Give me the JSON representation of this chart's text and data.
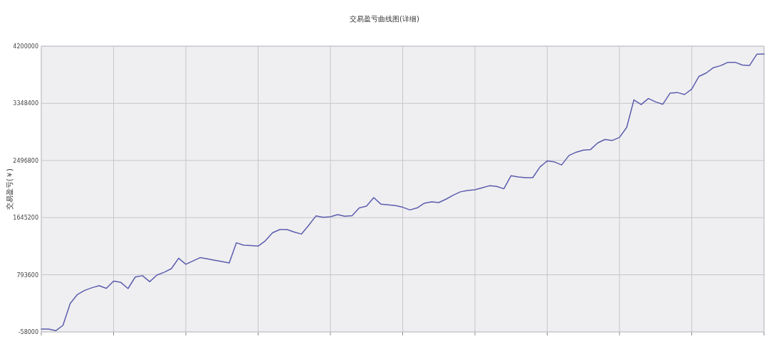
{
  "chart_data": {
    "type": "line",
    "title": "交易盈亏曲线图(详细)",
    "ylabel": "交易盈亏(￥)",
    "categories": [
      null,
      null,
      null,
      null,
      null,
      null,
      null,
      null,
      null,
      null,
      null,
      null,
      null,
      null,
      null,
      null,
      null,
      null,
      null,
      null,
      null,
      null,
      null,
      null,
      null,
      null,
      null,
      null,
      null,
      null,
      null,
      null,
      null,
      null,
      null,
      null,
      null,
      null,
      null,
      null,
      null,
      null,
      null,
      null,
      null,
      null,
      null,
      null,
      null,
      null,
      null,
      null,
      null,
      null,
      null,
      null,
      null,
      null,
      null,
      null,
      null,
      null,
      null,
      null,
      null,
      null,
      null,
      null,
      null,
      null,
      null,
      null,
      null,
      null,
      null,
      null,
      null,
      null,
      null,
      null,
      null,
      null,
      null,
      null,
      null,
      null,
      null,
      null,
      null,
      null,
      null,
      null,
      null,
      null,
      null,
      null,
      null,
      null,
      null,
      null,
      null
    ],
    "series": [
      {
        "color": "#5c5cae",
        "values": [
          -16000,
          -16000,
          -40000,
          40000,
          366000,
          500000,
          560000,
          600000,
          630000,
          590000,
          700000,
          680000,
          588000,
          760000,
          780000,
          690000,
          790000,
          830000,
          885000,
          1040000,
          950000,
          1000000,
          1050000,
          1030000,
          1010000,
          990000,
          969000,
          1270000,
          1234000,
          1230000,
          1220000,
          1300000,
          1420000,
          1467000,
          1467000,
          1430000,
          1400000,
          1530000,
          1670000,
          1650000,
          1658000,
          1690000,
          1665000,
          1675000,
          1790000,
          1817000,
          1944000,
          1845000,
          1835000,
          1825000,
          1800000,
          1760000,
          1790000,
          1860000,
          1880000,
          1870000,
          1920000,
          1980000,
          2030000,
          2050000,
          2060000,
          2090000,
          2120000,
          2110000,
          2075000,
          2270000,
          2250000,
          2240000,
          2240000,
          2400000,
          2490000,
          2475000,
          2430000,
          2570000,
          2620000,
          2650000,
          2660000,
          2760000,
          2810000,
          2795000,
          2840000,
          2990000,
          3400000,
          3330000,
          3420000,
          3370000,
          3335000,
          3500000,
          3510000,
          3480000,
          3560000,
          3750000,
          3800000,
          3880000,
          3910000,
          3960000,
          3960000,
          3920000,
          3912000,
          4080000,
          4083000
        ]
      }
    ],
    "ylim": [
      -58000,
      4200000
    ],
    "yticks": [
      -58000,
      793600,
      1645200,
      2496800,
      3348400,
      4200000
    ],
    "grid": true
  }
}
